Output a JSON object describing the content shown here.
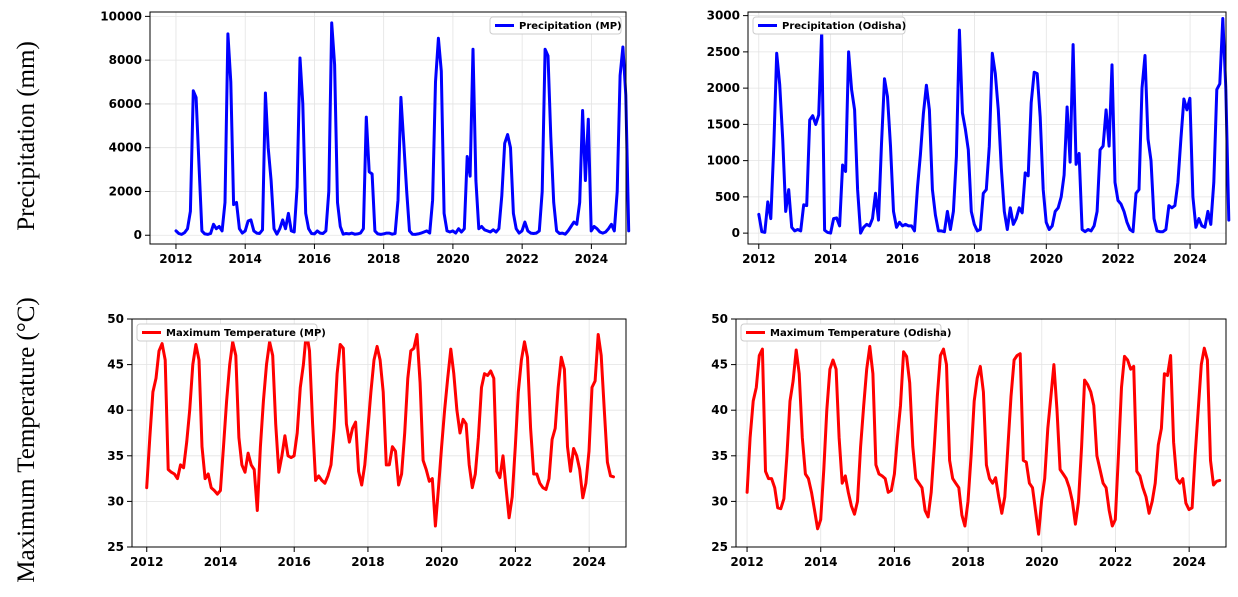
{
  "row_labels": {
    "top": "Precipitation (mm)",
    "bottom": "Maximum Temperature (°C)"
  },
  "chart_data": [
    {
      "type": "line",
      "series": [
        {
          "name": "Precipitation (MP)",
          "color": "#0000ff"
        }
      ],
      "x_start": 2012.0,
      "x_step": 0.0833,
      "values": [
        200,
        80,
        40,
        120,
        300,
        1100,
        6600,
        6300,
        3200,
        200,
        60,
        40,
        80,
        500,
        300,
        400,
        200,
        1500,
        9200,
        7000,
        1400,
        1500,
        300,
        100,
        200,
        650,
        700,
        200,
        100,
        80,
        250,
        6500,
        4000,
        2500,
        300,
        50,
        300,
        700,
        300,
        1000,
        200,
        150,
        2200,
        8100,
        6000,
        1000,
        300,
        80,
        60,
        200,
        100,
        80,
        200,
        2000,
        9700,
        7800,
        1500,
        400,
        50,
        80,
        60,
        100,
        50,
        60,
        100,
        300,
        5400,
        2900,
        2800,
        200,
        60,
        40,
        60,
        100,
        100,
        50,
        80,
        1600,
        6300,
        4200,
        2000,
        200,
        50,
        40,
        60,
        100,
        150,
        200,
        100,
        1600,
        7000,
        9000,
        7500,
        1000,
        200,
        150,
        200,
        100,
        300,
        150,
        300,
        3600,
        2700,
        8500,
        2500,
        300,
        400,
        250,
        200,
        150,
        250,
        150,
        300,
        1800,
        4200,
        4600,
        4000,
        1000,
        300,
        100,
        200,
        600,
        200,
        100,
        80,
        100,
        200,
        2000,
        8500,
        8200,
        4500,
        1500,
        200,
        80,
        100,
        50,
        200,
        400,
        600,
        500,
        1500,
        5700,
        2500,
        5300,
        200,
        400,
        300,
        150,
        100,
        150,
        300,
        500,
        200,
        2000,
        7300,
        8600,
        6400,
        200
      ],
      "xlim": [
        2011.25,
        2025.0
      ],
      "ylim": [
        -400,
        10200
      ],
      "x_ticks": [
        "2012",
        "2014",
        "2016",
        "2018",
        "2020",
        "2022",
        "2024"
      ],
      "y_ticks": [
        "0",
        "2000",
        "4000",
        "6000",
        "8000",
        "10000"
      ],
      "grid": true,
      "legend": "top-right"
    },
    {
      "type": "line",
      "series": [
        {
          "name": "Precipitation (Odisha)",
          "color": "#0000ff"
        }
      ],
      "x_start": 2012.0,
      "x_step": 0.0833,
      "values": [
        260,
        20,
        10,
        430,
        200,
        1200,
        2480,
        2050,
        1300,
        300,
        600,
        80,
        30,
        50,
        30,
        390,
        380,
        1560,
        1620,
        1500,
        1630,
        2780,
        40,
        10,
        0,
        200,
        210,
        100,
        940,
        850,
        2500,
        1980,
        1700,
        600,
        0,
        80,
        120,
        100,
        200,
        550,
        180,
        1230,
        2130,
        1880,
        1200,
        300,
        80,
        150,
        100,
        120,
        100,
        100,
        30,
        630,
        1080,
        1650,
        2040,
        1700,
        600,
        250,
        30,
        30,
        20,
        300,
        50,
        300,
        1060,
        2800,
        1660,
        1430,
        1150,
        300,
        120,
        30,
        50,
        550,
        600,
        1200,
        2480,
        2200,
        1700,
        900,
        300,
        50,
        350,
        120,
        200,
        350,
        280,
        830,
        790,
        1800,
        2220,
        2200,
        1600,
        600,
        150,
        50,
        100,
        300,
        350,
        500,
        800,
        1740,
        980,
        2600,
        950,
        1100,
        50,
        20,
        50,
        30,
        100,
        300,
        1150,
        1200,
        1700,
        1200,
        2320,
        700,
        450,
        400,
        300,
        150,
        50,
        20,
        550,
        600,
        2000,
        2450,
        1300,
        1000,
        200,
        30,
        20,
        20,
        50,
        380,
        350,
        380,
        700,
        1300,
        1850,
        1700,
        1860,
        500,
        80,
        200,
        100,
        80,
        300,
        120,
        700,
        1980,
        2060,
        2960,
        2000,
        180
      ],
      "xlim": [
        2011.7,
        2025.0
      ],
      "ylim": [
        -150,
        3050
      ],
      "x_ticks": [
        "2012",
        "2014",
        "2016",
        "2018",
        "2020",
        "2022",
        "2024"
      ],
      "y_ticks": [
        "0",
        "500",
        "1000",
        "1500",
        "2000",
        "2500",
        "3000"
      ],
      "grid": true,
      "legend": "top-left"
    },
    {
      "type": "line",
      "series": [
        {
          "name": "Maximum Temperature (MP)",
          "color": "#ff0000"
        }
      ],
      "x_start": 2012.0,
      "x_step": 0.0833,
      "values": [
        31.5,
        37,
        42,
        43.5,
        46.5,
        47.3,
        45.5,
        33.5,
        33.2,
        33,
        32.5,
        34,
        33.7,
        36.5,
        40,
        45,
        47.2,
        45.5,
        36,
        32.5,
        33,
        31.5,
        31.2,
        30.8,
        31.2,
        36,
        41,
        45,
        47.5,
        46,
        37,
        34,
        33.2,
        35.3,
        34,
        33.5,
        29,
        36,
        41,
        45,
        47.5,
        46,
        38.5,
        33.2,
        35,
        37.2,
        35,
        34.8,
        35,
        37.5,
        42.5,
        45,
        48.6,
        46.5,
        38.5,
        32.3,
        32.8,
        32.3,
        32,
        32.8,
        34,
        38,
        44,
        47.2,
        46.8,
        38.5,
        36.5,
        38,
        38.7,
        33.3,
        31.8,
        34,
        38,
        42,
        45.5,
        47,
        45.5,
        42,
        34,
        34,
        36,
        35.5,
        31.8,
        33,
        37.5,
        43.5,
        46.5,
        46.8,
        48.3,
        43,
        34.5,
        33.5,
        32.2,
        32.5,
        27.3,
        31.5,
        36,
        40,
        43.5,
        46.7,
        44,
        40,
        37.5,
        39,
        38.5,
        34,
        31.5,
        33,
        37,
        42.5,
        44,
        43.8,
        44.3,
        43.5,
        33.3,
        32.6,
        35,
        31.5,
        28.2,
        30.5,
        36,
        42,
        45.5,
        47.5,
        45.8,
        38,
        33,
        33,
        32,
        31.5,
        31.3,
        32.5,
        36.8,
        38,
        42.5,
        45.8,
        44.5,
        36,
        33.3,
        35.8,
        35,
        33.5,
        30.4,
        32,
        35.5,
        42.5,
        43.2,
        48.3,
        46,
        40,
        34.3,
        32.8,
        32.7
      ],
      "xlim": [
        2011.6,
        2025.0
      ],
      "ylim": [
        25,
        50
      ],
      "x_ticks": [
        "2012",
        "2014",
        "2016",
        "2018",
        "2020",
        "2022",
        "2024"
      ],
      "y_ticks": [
        "25",
        "30",
        "35",
        "40",
        "45",
        "50"
      ],
      "grid": true,
      "legend": "top-left"
    },
    {
      "type": "line",
      "series": [
        {
          "name": "Maximum Temperature (Odisha)",
          "color": "#ff0000"
        }
      ],
      "x_start": 2012.0,
      "x_step": 0.0833,
      "values": [
        31,
        37,
        41,
        42.5,
        46,
        46.7,
        33.3,
        32.5,
        32.5,
        31.5,
        29.3,
        29.2,
        30.3,
        35,
        41,
        43.2,
        46.6,
        44,
        37,
        33,
        32.5,
        31,
        29,
        27,
        28,
        33.5,
        40,
        44.5,
        45.5,
        44.5,
        37,
        32,
        32.8,
        31,
        29.5,
        28.6,
        30,
        36,
        40.5,
        44.5,
        47,
        44,
        34,
        33,
        32.8,
        32.5,
        31,
        31.2,
        33,
        37,
        40.5,
        46.4,
        45.9,
        43,
        36,
        32.5,
        32,
        31.5,
        29,
        28.3,
        31,
        36,
        41.5,
        46,
        46.7,
        45,
        34.5,
        32.5,
        32,
        31.5,
        28.5,
        27.3,
        30,
        35,
        41,
        43.5,
        44.8,
        42,
        34,
        32.5,
        32,
        32.6,
        30.5,
        28.7,
        30.5,
        36,
        41.5,
        45.5,
        46,
        46.2,
        34.5,
        34.3,
        32,
        31.5,
        29,
        26.4,
        30.2,
        32.5,
        38,
        41.5,
        45,
        40,
        33.5,
        33,
        32.5,
        31.5,
        30,
        27.5,
        30,
        36,
        43.3,
        42.8,
        42,
        40.5,
        35,
        33.5,
        32,
        31.5,
        29,
        27.3,
        28,
        35,
        42.5,
        45.9,
        45.5,
        44.5,
        44.8,
        33.3,
        32.8,
        31.5,
        30.5,
        28.7,
        30,
        32,
        36.2,
        38,
        44,
        43.8,
        46,
        36.5,
        32.5,
        32,
        32.5,
        29.8,
        29.1,
        29.3,
        35,
        40,
        45,
        46.8,
        45.5,
        34.5,
        31.8,
        32.2,
        32.3
      ],
      "xlim": [
        2011.7,
        2025.0
      ],
      "ylim": [
        25,
        50
      ],
      "x_ticks": [
        "2012",
        "2014",
        "2016",
        "2018",
        "2020",
        "2022",
        "2024"
      ],
      "y_ticks": [
        "25",
        "30",
        "35",
        "40",
        "45",
        "50"
      ],
      "grid": true,
      "legend": "top-left"
    }
  ]
}
